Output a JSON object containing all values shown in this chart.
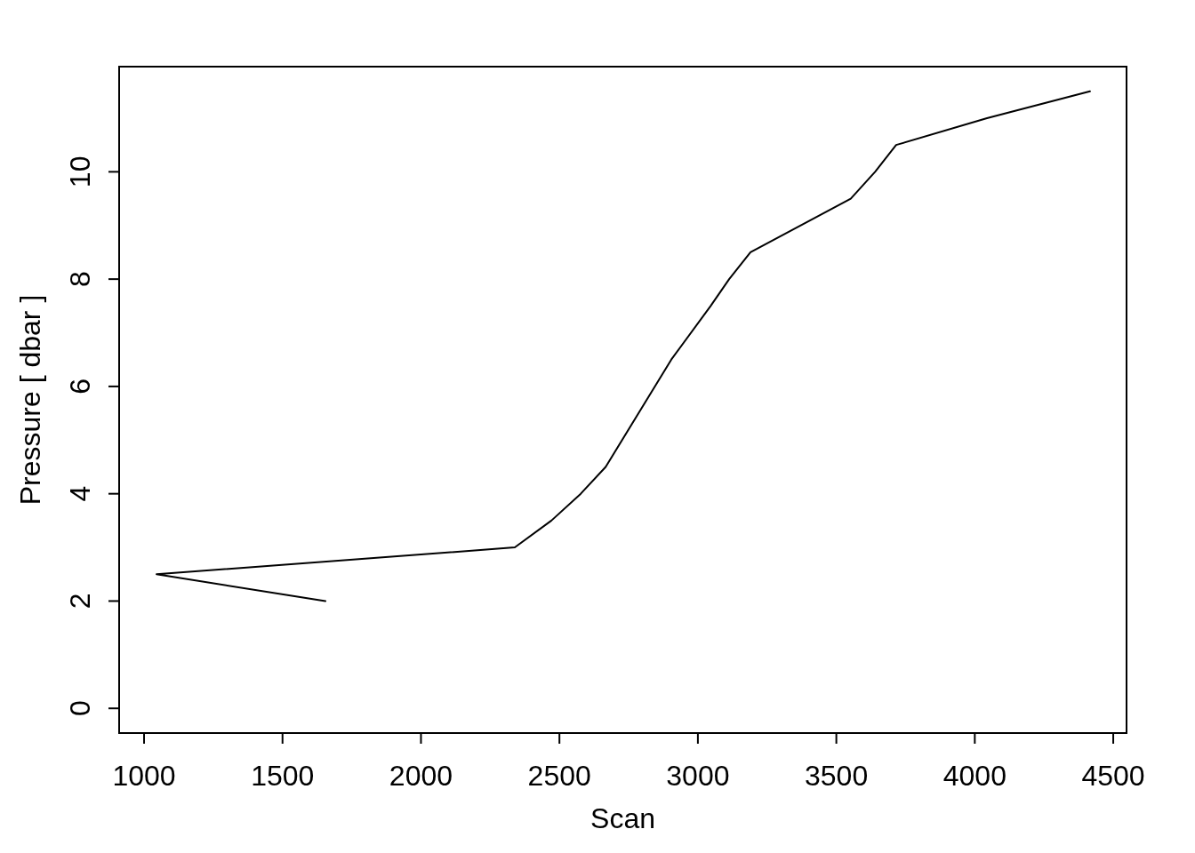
{
  "chart_data": {
    "type": "line",
    "xlabel": "Scan",
    "ylabel": "Pressure [ dbar ]",
    "x": [
      1655,
      1045,
      2339,
      2471,
      2577,
      2667,
      2904,
      3046,
      3113,
      3190,
      3552,
      3640,
      3716,
      4044,
      4416
    ],
    "series": [
      {
        "color": "#000000",
        "values": [
          2,
          2.5,
          3,
          3.5,
          4,
          4.5,
          6.5,
          7.5,
          8,
          8.5,
          9.5,
          10,
          10.5,
          11,
          11.5
        ]
      }
    ],
    "xlim": [
      910,
      4548
    ],
    "xticks": [
      1000,
      1500,
      2000,
      2500,
      3000,
      3500,
      4000,
      4500
    ],
    "ylim": [
      -0.46,
      11.96
    ],
    "yticks": [
      0,
      2,
      4,
      6,
      8,
      10
    ],
    "grid": false,
    "legend": false,
    "marker": "none",
    "line_style": "solid"
  }
}
